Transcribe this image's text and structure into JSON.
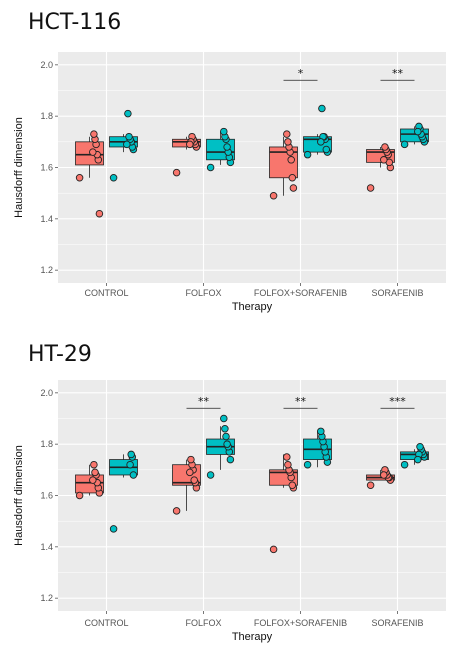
{
  "colors": {
    "series1": "#F8766D",
    "series2": "#00BFC4",
    "panel_bg": "#EBEBEB",
    "grid": "#FFFFFF"
  },
  "chart_data": [
    {
      "type": "box",
      "title": "HCT-116",
      "xlabel": "Therapy",
      "ylabel": "Hausdorff dimension",
      "ylim": [
        1.15,
        2.05
      ],
      "yticks": [
        "1.2",
        "1.4",
        "1.6",
        "1.8",
        "2.0"
      ],
      "categories": [
        "CONTROL",
        "FOLFOX",
        "FOLFOX+SORAFENIB",
        "SORAFENIB"
      ],
      "significance": [
        "",
        "",
        "*",
        "**"
      ],
      "series": [
        {
          "color": "#F8766D",
          "boxes": [
            {
              "min": 1.56,
              "q1": 1.61,
              "median": 1.65,
              "q3": 1.7,
              "max": 1.72
            },
            {
              "min": 1.67,
              "q1": 1.68,
              "median": 1.7,
              "q3": 1.71,
              "max": 1.72
            },
            {
              "min": 1.49,
              "q1": 1.56,
              "median": 1.66,
              "q3": 1.68,
              "max": 1.72
            },
            {
              "min": 1.6,
              "q1": 1.62,
              "median": 1.66,
              "q3": 1.67,
              "max": 1.68
            }
          ],
          "points": [
            [
              1.56,
              1.42,
              1.63,
              1.65,
              1.69,
              1.71,
              1.73,
              1.66
            ],
            [
              1.58,
              1.68,
              1.69,
              1.7,
              1.71,
              1.72,
              1.7,
              1.69
            ],
            [
              1.49,
              1.52,
              1.56,
              1.63,
              1.66,
              1.68,
              1.7,
              1.73
            ],
            [
              1.52,
              1.6,
              1.62,
              1.65,
              1.66,
              1.67,
              1.68,
              1.63
            ]
          ]
        },
        {
          "color": "#00BFC4",
          "boxes": [
            {
              "min": 1.66,
              "q1": 1.68,
              "median": 1.7,
              "q3": 1.72,
              "max": 1.73
            },
            {
              "min": 1.61,
              "q1": 1.63,
              "median": 1.66,
              "q3": 1.71,
              "max": 1.74
            },
            {
              "min": 1.65,
              "q1": 1.66,
              "median": 1.71,
              "q3": 1.72,
              "max": 1.73
            },
            {
              "min": 1.69,
              "q1": 1.7,
              "median": 1.73,
              "q3": 1.75,
              "max": 1.76
            }
          ],
          "points": [
            [
              1.56,
              1.67,
              1.68,
              1.7,
              1.71,
              1.72,
              1.81,
              1.69
            ],
            [
              1.6,
              1.62,
              1.64,
              1.66,
              1.68,
              1.71,
              1.72,
              1.74
            ],
            [
              1.65,
              1.66,
              1.67,
              1.71,
              1.72,
              1.72,
              1.83,
              1.7
            ],
            [
              1.69,
              1.7,
              1.71,
              1.72,
              1.73,
              1.75,
              1.76,
              1.74
            ]
          ]
        }
      ]
    },
    {
      "type": "box",
      "title": "HT-29",
      "xlabel": "Therapy",
      "ylabel": "Hausdorff dimension",
      "ylim": [
        1.15,
        2.05
      ],
      "yticks": [
        "1.2",
        "1.4",
        "1.6",
        "1.8",
        "2.0"
      ],
      "categories": [
        "CONTROL",
        "FOLFOX",
        "FOLFOX+SORAFENIB",
        "SORAFENIB"
      ],
      "significance": [
        "",
        "**",
        "**",
        "***"
      ],
      "series": [
        {
          "color": "#F8766D",
          "boxes": [
            {
              "min": 1.6,
              "q1": 1.61,
              "median": 1.65,
              "q3": 1.68,
              "max": 1.72
            },
            {
              "min": 1.54,
              "q1": 1.64,
              "median": 1.65,
              "q3": 1.72,
              "max": 1.74
            },
            {
              "min": 1.63,
              "q1": 1.64,
              "median": 1.69,
              "q3": 1.7,
              "max": 1.76
            },
            {
              "min": 1.66,
              "q1": 1.66,
              "median": 1.67,
              "q3": 1.68,
              "max": 1.7
            }
          ],
          "points": [
            [
              1.6,
              1.61,
              1.63,
              1.65,
              1.68,
              1.69,
              1.72,
              1.66
            ],
            [
              1.54,
              1.63,
              1.65,
              1.66,
              1.7,
              1.72,
              1.74,
              1.69
            ],
            [
              1.39,
              1.63,
              1.64,
              1.67,
              1.69,
              1.7,
              1.72,
              1.75
            ],
            [
              1.64,
              1.66,
              1.67,
              1.67,
              1.68,
              1.69,
              1.7,
              1.68
            ]
          ]
        },
        {
          "color": "#00BFC4",
          "boxes": [
            {
              "min": 1.67,
              "q1": 1.68,
              "median": 1.71,
              "q3": 1.74,
              "max": 1.76
            },
            {
              "min": 1.7,
              "q1": 1.76,
              "median": 1.79,
              "q3": 1.82,
              "max": 1.87
            },
            {
              "min": 1.71,
              "q1": 1.74,
              "median": 1.78,
              "q3": 1.82,
              "max": 1.85
            },
            {
              "min": 1.72,
              "q1": 1.74,
              "median": 1.76,
              "q3": 1.77,
              "max": 1.78
            }
          ],
          "points": [
            [
              1.47,
              1.68,
              1.75,
              1.76,
              1.72
            ],
            [
              1.68,
              1.74,
              1.77,
              1.79,
              1.8,
              1.83,
              1.86,
              1.9
            ],
            [
              1.72,
              1.73,
              1.75,
              1.77,
              1.79,
              1.81,
              1.83,
              1.85
            ],
            [
              1.72,
              1.75,
              1.76,
              1.77,
              1.78,
              1.79,
              1.76,
              1.74
            ]
          ]
        }
      ]
    }
  ]
}
